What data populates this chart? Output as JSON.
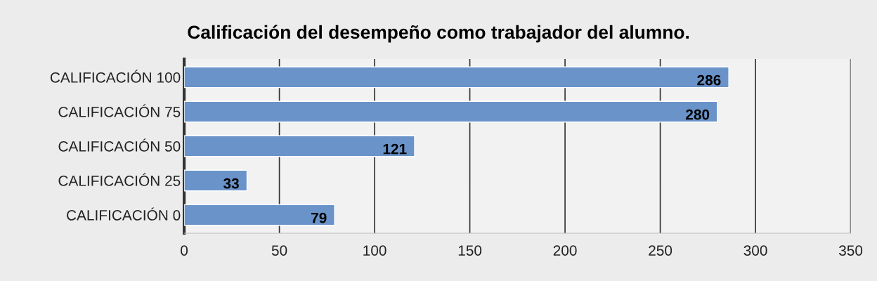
{
  "chart_data": {
    "type": "bar",
    "orientation": "horizontal",
    "title": "Calificación del desempeño como trabajador del alumno.",
    "categories": [
      "CALIFICACIÓN 100",
      "CALIFICACIÓN 75",
      "CALIFICACIÓN 50",
      "CALIFICACIÓN 25",
      "CALIFICACIÓN 0"
    ],
    "values": [
      286,
      280,
      121,
      33,
      79
    ],
    "color": "#6a93c9",
    "xlim": [
      0,
      350
    ],
    "xticks": [
      0,
      50,
      100,
      150,
      200,
      250,
      300,
      350
    ],
    "grid": "x",
    "data_labels": true
  }
}
